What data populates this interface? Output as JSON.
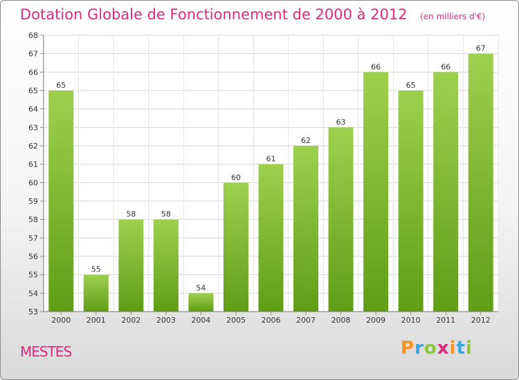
{
  "chart_data": {
    "type": "bar",
    "title": "Dotation Globale de Fonctionnement de 2000 à 2012",
    "subtitle": "(en milliers d'€)",
    "categories": [
      "2000",
      "2001",
      "2002",
      "2003",
      "2004",
      "2005",
      "2006",
      "2007",
      "2008",
      "2009",
      "2010",
      "2011",
      "2012"
    ],
    "values": [
      65,
      55,
      58,
      58,
      54,
      60,
      61,
      62,
      63,
      66,
      65,
      66,
      67
    ],
    "xlabel": "",
    "ylabel": "",
    "ylim": [
      53,
      68
    ],
    "yticks": [
      53,
      54,
      55,
      56,
      57,
      58,
      59,
      60,
      61,
      62,
      63,
      64,
      65,
      66,
      67,
      68
    ],
    "grid": true,
    "bar_color_top": "#9ed04e",
    "bar_color_bottom": "#5f9e16"
  },
  "footer": {
    "commune": "MESTES",
    "brand_letters": [
      "P",
      "r",
      "o",
      "x",
      "i",
      "t",
      "i"
    ],
    "brand_colors": [
      "#f7931e",
      "#3aa3dc",
      "#8cc63f",
      "#e0287c",
      "#f7931e",
      "#3aa3dc",
      "#8cc63f"
    ]
  },
  "theme": {
    "accent": "#e0287c"
  }
}
